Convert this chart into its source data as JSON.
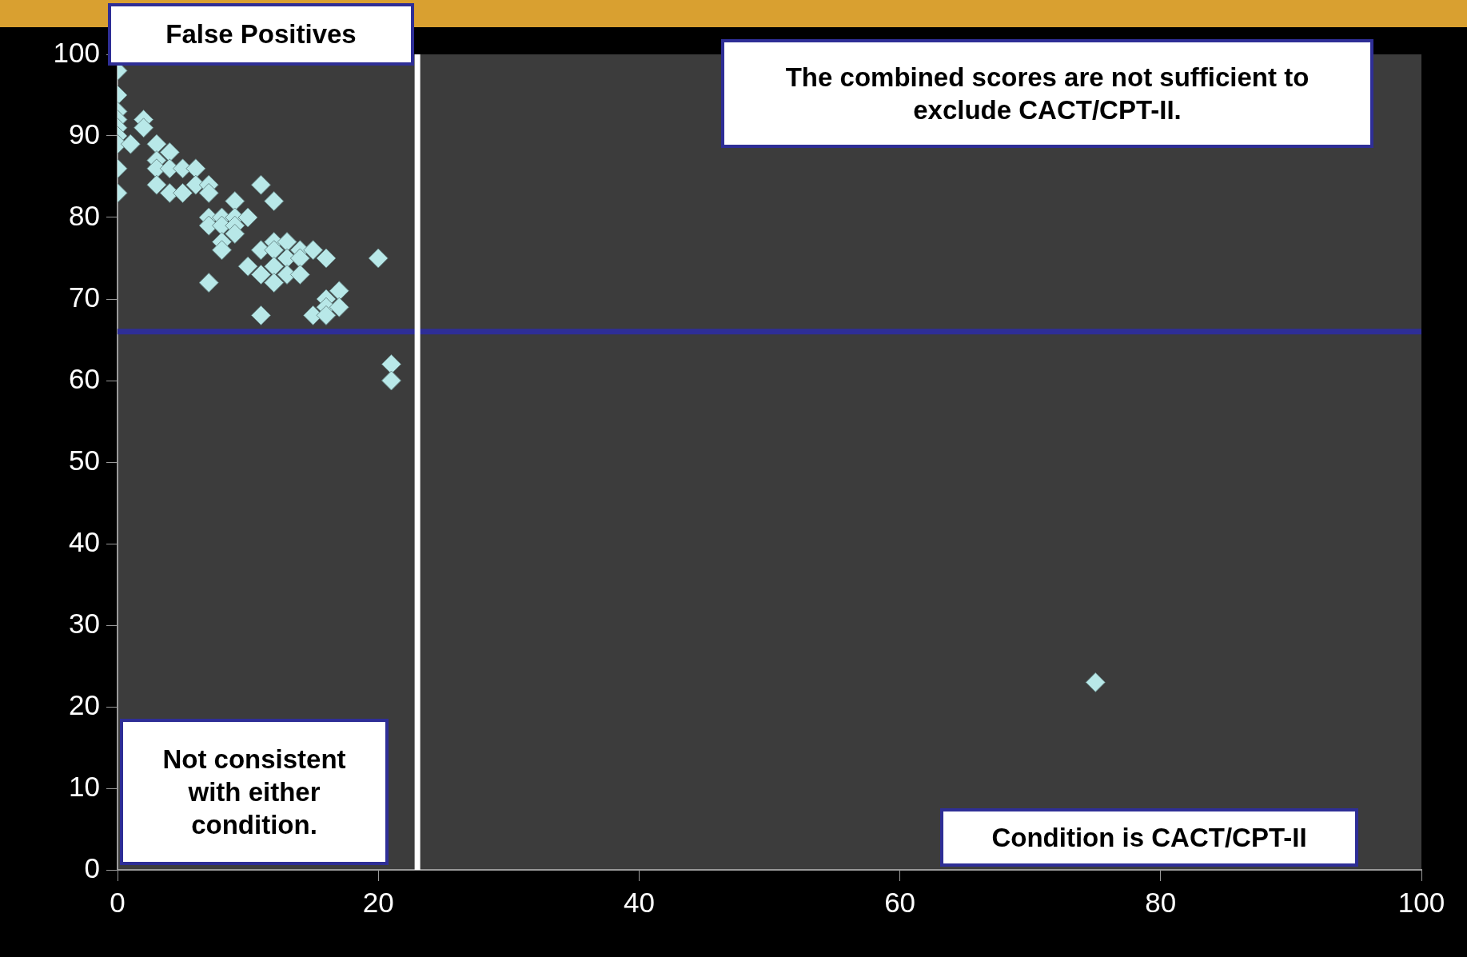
{
  "chart_data": {
    "type": "scatter",
    "annotations": [
      "False Positives",
      "The combined scores are not sufficient to exclude CACT/CPT-II.",
      "Not consistent with either condition.",
      "Condition is CACT/CPT-II"
    ],
    "x": [
      0,
      0,
      0,
      0,
      0,
      0,
      0,
      0,
      0,
      1,
      2,
      2,
      3,
      3,
      3,
      3,
      4,
      4,
      4,
      5,
      5,
      6,
      6,
      7,
      7,
      7,
      7,
      7,
      8,
      8,
      8,
      8,
      9,
      9,
      9,
      9,
      10,
      10,
      11,
      11,
      11,
      11,
      12,
      12,
      12,
      12,
      12,
      13,
      13,
      13,
      14,
      14,
      14,
      15,
      15,
      16,
      16,
      16,
      16,
      17,
      17,
      20,
      21,
      21,
      75
    ],
    "series": [
      {
        "color": "#b8e8e8",
        "values": [
          98,
          95,
          93,
          92,
          91,
          90,
          89,
          86,
          83,
          89,
          92,
          91,
          89,
          87,
          86,
          84,
          88,
          86,
          83,
          86,
          83,
          86,
          84,
          84,
          83,
          80,
          79,
          72,
          80,
          79,
          77,
          76,
          82,
          80,
          79,
          78,
          80,
          74,
          84,
          76,
          73,
          68,
          82,
          77,
          76,
          74,
          72,
          77,
          75,
          73,
          76,
          75,
          73,
          76,
          68,
          75,
          70,
          69,
          68,
          71,
          69,
          75,
          62,
          60,
          23
        ]
      }
    ],
    "marker": "diamond",
    "grid": false,
    "legend": false,
    "xlim": [
      0,
      100
    ],
    "xticks": [
      0,
      20,
      40,
      60,
      80,
      100
    ],
    "ylim": [
      0,
      100
    ],
    "yticks": [
      0,
      10,
      20,
      30,
      40,
      50,
      60,
      70,
      80,
      90,
      100
    ],
    "ref_lines": [
      {
        "axis": "y",
        "value": 66,
        "color": "#2e2e96"
      },
      {
        "axis": "x",
        "value": 23,
        "color": "#ffffff"
      }
    ]
  }
}
